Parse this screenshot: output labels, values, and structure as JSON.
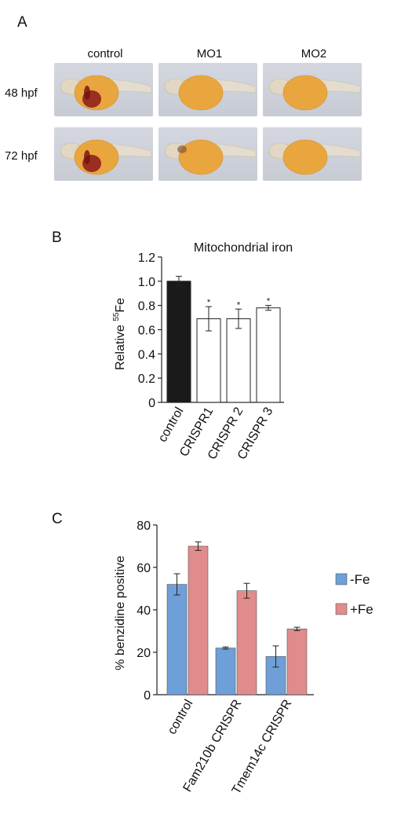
{
  "panel_a": {
    "letter": "A",
    "columns": [
      "control",
      "MO1",
      "MO2"
    ],
    "rows": [
      "48 hpf",
      "72 hpf"
    ],
    "images": [
      {
        "row": 0,
        "col": 0,
        "stain": "strong"
      },
      {
        "row": 0,
        "col": 1,
        "stain": "none"
      },
      {
        "row": 0,
        "col": 2,
        "stain": "none"
      },
      {
        "row": 1,
        "col": 0,
        "stain": "strong"
      },
      {
        "row": 1,
        "col": 1,
        "stain": "weak"
      },
      {
        "row": 1,
        "col": 2,
        "stain": "none"
      }
    ]
  },
  "panel_b": {
    "letter": "B"
  },
  "panel_c": {
    "letter": "C"
  },
  "chart_data": [
    {
      "type": "bar",
      "title": "Mitochondrial iron",
      "ylabel": "Relative 55Fe",
      "ylabel_main": "Relative ",
      "ylabel_sup": "55",
      "ylabel_tail": "Fe",
      "xlabel": "",
      "categories": [
        "control",
        "CRISPR1",
        "CRISPR 2",
        "CRISPR 3"
      ],
      "values": [
        1.0,
        0.69,
        0.69,
        0.78
      ],
      "errors": [
        0.04,
        0.1,
        0.08,
        0.02
      ],
      "significance": [
        "",
        "*",
        "*",
        "*"
      ],
      "bar_colors": [
        "#1a1a1a",
        "#ffffff",
        "#ffffff",
        "#ffffff"
      ],
      "ylim": [
        0,
        1.2
      ],
      "yticks": [
        "0",
        "0.2",
        "0.4",
        "0.6",
        "0.8",
        "1.0",
        "1.2"
      ],
      "grid": false
    },
    {
      "type": "bar",
      "title": "",
      "ylabel": "% benzidine positive",
      "xlabel": "",
      "categories": [
        "control",
        "Fam210b CRISPR",
        "Tmem14c CRISPR"
      ],
      "series": [
        {
          "name": "-Fe",
          "values": [
            52,
            22,
            18
          ],
          "errors": [
            5,
            0.5,
            5
          ],
          "color": "#6f9fd8"
        },
        {
          "name": "+Fe",
          "values": [
            70,
            49,
            31
          ],
          "errors": [
            2,
            3.5,
            0.8
          ],
          "color": "#e08c8c"
        }
      ],
      "ylim": [
        0,
        80
      ],
      "yticks": [
        "0",
        "20",
        "40",
        "60",
        "80"
      ],
      "legend": "right",
      "grid": false
    }
  ]
}
